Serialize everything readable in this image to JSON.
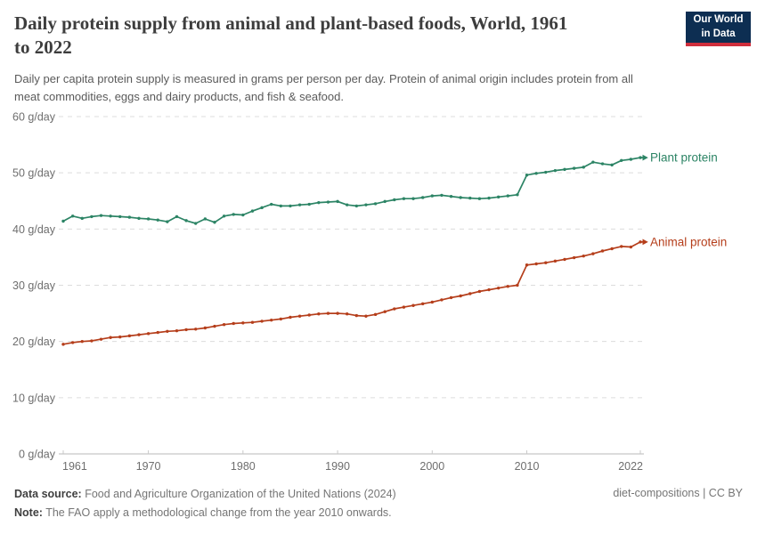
{
  "header": {
    "title": "Daily protein supply from animal and plant-based foods, World, 1961 to 2022",
    "title_line1": "Daily protein supply from animal and plant-based foods, World, 1961",
    "title_line2": "to 2022",
    "subtitle_line1": "Daily per capita protein supply is measured in grams per person per day. Protein of animal origin includes protein from all",
    "subtitle_line2": "meat commodities, eggs and dairy products, and fish & seafood.",
    "logo": {
      "line1": "Our World",
      "line2": "in Data",
      "bg_color": "#0d2e52",
      "stripe_color": "#cf2e3c"
    }
  },
  "chart_data": {
    "type": "line",
    "title": "Daily protein supply from animal and plant-based foods, World, 1961 to 2022",
    "unit": "g/day",
    "xlim": [
      1961,
      2022
    ],
    "ylim": [
      0,
      60
    ],
    "yticks": [
      0,
      10,
      20,
      30,
      40,
      50,
      60
    ],
    "ytick_suffix": " g/day",
    "xticks": [
      1961,
      1970,
      1980,
      1990,
      2000,
      2010,
      2022
    ],
    "grid": "horizontal-dashed",
    "legend_position": "line-end-labels",
    "years": [
      1961,
      1962,
      1963,
      1964,
      1965,
      1966,
      1967,
      1968,
      1969,
      1970,
      1971,
      1972,
      1973,
      1974,
      1975,
      1976,
      1977,
      1978,
      1979,
      1980,
      1981,
      1982,
      1983,
      1984,
      1985,
      1986,
      1987,
      1988,
      1989,
      1990,
      1991,
      1992,
      1993,
      1994,
      1995,
      1996,
      1997,
      1998,
      1999,
      2000,
      2001,
      2002,
      2003,
      2004,
      2005,
      2006,
      2007,
      2008,
      2009,
      2010,
      2011,
      2012,
      2013,
      2014,
      2015,
      2016,
      2017,
      2018,
      2019,
      2020,
      2021,
      2022
    ],
    "series": [
      {
        "name": "Plant protein",
        "color": "#2c8465",
        "values": [
          41.4,
          42.3,
          41.9,
          42.2,
          42.4,
          42.3,
          42.2,
          42.1,
          41.9,
          41.8,
          41.6,
          41.3,
          42.2,
          41.5,
          41.0,
          41.8,
          41.2,
          42.3,
          42.6,
          42.5,
          43.2,
          43.8,
          44.4,
          44.1,
          44.1,
          44.3,
          44.4,
          44.7,
          44.8,
          44.9,
          44.3,
          44.1,
          44.3,
          44.5,
          44.9,
          45.2,
          45.4,
          45.4,
          45.6,
          45.9,
          46.0,
          45.8,
          45.6,
          45.5,
          45.4,
          45.5,
          45.7,
          45.9,
          46.1,
          49.6,
          49.9,
          50.1,
          50.4,
          50.6,
          50.8,
          51.0,
          51.9,
          51.6,
          51.4,
          52.2,
          52.4,
          52.7
        ]
      },
      {
        "name": "Animal protein",
        "color": "#b53e1b",
        "values": [
          19.5,
          19.8,
          20.0,
          20.1,
          20.4,
          20.7,
          20.8,
          21.0,
          21.2,
          21.4,
          21.6,
          21.8,
          21.9,
          22.1,
          22.2,
          22.4,
          22.7,
          23.0,
          23.2,
          23.3,
          23.4,
          23.6,
          23.8,
          24.0,
          24.3,
          24.5,
          24.7,
          24.9,
          25.0,
          25.0,
          24.9,
          24.6,
          24.5,
          24.8,
          25.3,
          25.8,
          26.1,
          26.4,
          26.7,
          27.0,
          27.4,
          27.8,
          28.1,
          28.5,
          28.9,
          29.2,
          29.5,
          29.8,
          30.0,
          33.6,
          33.8,
          34.0,
          34.3,
          34.6,
          34.9,
          35.2,
          35.6,
          36.1,
          36.5,
          36.9,
          36.8,
          37.7
        ]
      }
    ]
  },
  "footer": {
    "datasource_label": "Data source:",
    "datasource_text": " Food and Agriculture Organization of the United Nations (2024)",
    "note_label": "Note:",
    "note_text": " The FAO apply a methodological change from the year 2010 onwards.",
    "license": "diet-compositions | CC BY"
  }
}
